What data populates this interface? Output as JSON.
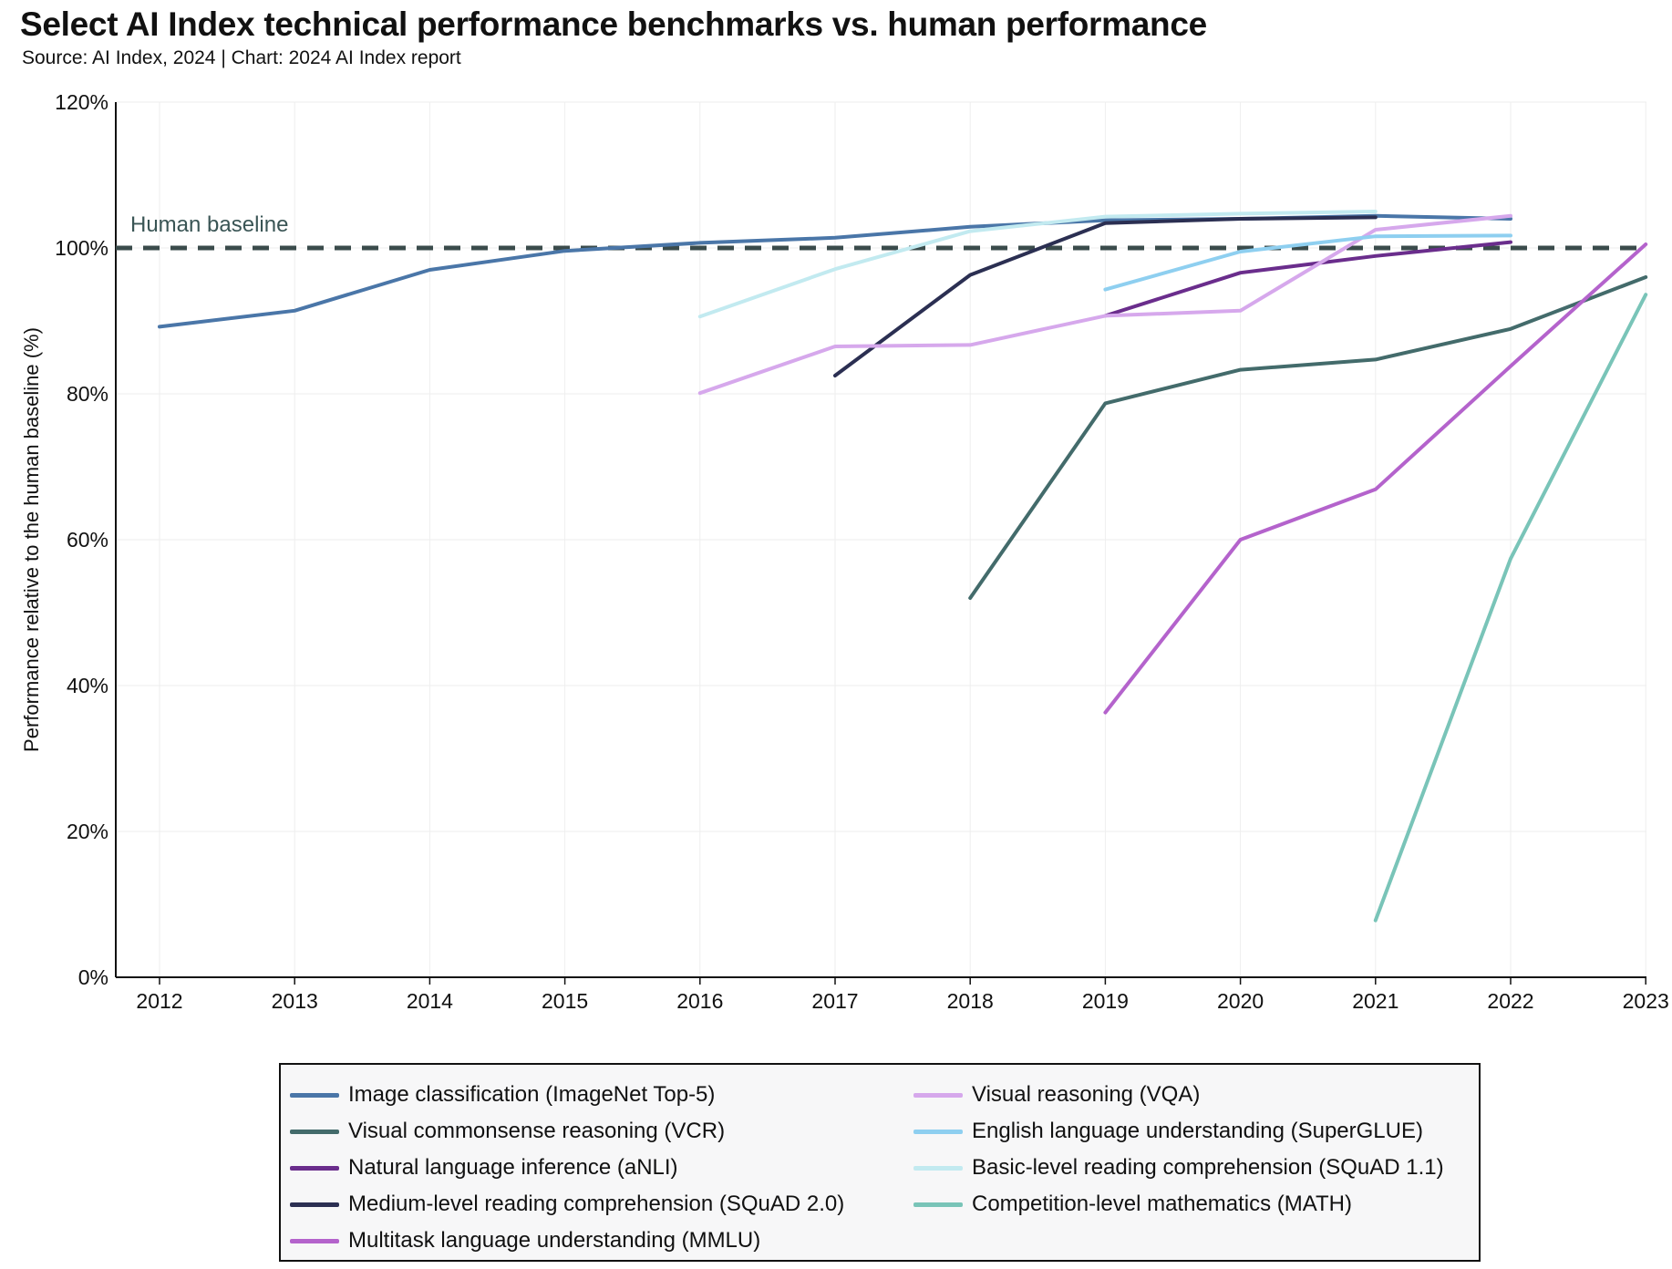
{
  "title": "Select AI Index technical performance benchmarks vs. human performance",
  "subtitle": "Source: AI Index, 2024 | Chart: 2024 AI Index report",
  "chart_data": {
    "type": "line",
    "ylabel": "Performance relative to the human baseline (%)",
    "xlabel": "",
    "x": [
      2012,
      2013,
      2014,
      2015,
      2016,
      2017,
      2018,
      2019,
      2020,
      2021,
      2022,
      2023
    ],
    "x_tick_labels": [
      "2012",
      "2013",
      "2014",
      "2015",
      "2016",
      "2017",
      "2018",
      "2019",
      "2020",
      "2021",
      "2022",
      "2023"
    ],
    "ylim": [
      0,
      120
    ],
    "y_ticks": [
      0,
      20,
      40,
      60,
      80,
      100,
      120
    ],
    "y_tick_labels": [
      "0%",
      "20%",
      "40%",
      "60%",
      "80%",
      "100%",
      "120%"
    ],
    "grid": "vertical and horizontal light gridlines",
    "legend_position": "bottom",
    "annotation": {
      "text": "Human baseline",
      "y": 100,
      "style": "dashed"
    },
    "series": [
      {
        "name": "Image classification (ImageNet Top-5)",
        "color": "#4a76a8",
        "points": [
          [
            2012,
            89.2
          ],
          [
            2013,
            91.4
          ],
          [
            2014,
            97.0
          ],
          [
            2015,
            99.6
          ],
          [
            2016,
            100.7
          ],
          [
            2017,
            101.4
          ],
          [
            2018,
            102.9
          ],
          [
            2019,
            103.8
          ],
          [
            2020,
            104.0
          ],
          [
            2021,
            104.4
          ],
          [
            2022,
            104.0
          ]
        ]
      },
      {
        "name": "Visual commonsense reasoning (VCR)",
        "color": "#436b6b",
        "points": [
          [
            2018,
            52.0
          ],
          [
            2019,
            78.7
          ],
          [
            2020,
            83.3
          ],
          [
            2021,
            84.7
          ],
          [
            2022,
            88.9
          ],
          [
            2023,
            96.0
          ]
        ]
      },
      {
        "name": "Natural language inference (aNLI)",
        "color": "#6a2d8c",
        "points": [
          [
            2019,
            90.7
          ],
          [
            2020,
            96.6
          ],
          [
            2021,
            98.9
          ],
          [
            2022,
            100.8
          ]
        ]
      },
      {
        "name": "Medium-level reading comprehension (SQuAD 2.0)",
        "color": "#2b2f52",
        "points": [
          [
            2017,
            82.5
          ],
          [
            2018,
            96.3
          ],
          [
            2019,
            103.4
          ],
          [
            2020,
            104.0
          ],
          [
            2021,
            104.2
          ]
        ]
      },
      {
        "name": "Multitask language understanding (MMLU)",
        "color": "#b463cc",
        "points": [
          [
            2019,
            36.3
          ],
          [
            2020,
            60.0
          ],
          [
            2021,
            66.9
          ],
          [
            2022,
            83.8
          ],
          [
            2023,
            100.5
          ]
        ]
      },
      {
        "name": "Visual reasoning (VQA)",
        "color": "#d6a8ec",
        "points": [
          [
            2016,
            80.1
          ],
          [
            2017,
            86.5
          ],
          [
            2018,
            86.7
          ],
          [
            2019,
            90.7
          ],
          [
            2020,
            91.4
          ],
          [
            2021,
            102.5
          ],
          [
            2022,
            104.4
          ]
        ]
      },
      {
        "name": "English language understanding (SuperGLUE)",
        "color": "#8ecff0",
        "points": [
          [
            2019,
            94.3
          ],
          [
            2020,
            99.5
          ],
          [
            2021,
            101.6
          ],
          [
            2022,
            101.7
          ]
        ]
      },
      {
        "name": "Basic-level reading comprehension (SQuAD 1.1)",
        "color": "#c2eaf0",
        "points": [
          [
            2016,
            90.6
          ],
          [
            2017,
            97.1
          ],
          [
            2018,
            102.3
          ],
          [
            2019,
            104.3
          ],
          [
            2020,
            104.7
          ],
          [
            2021,
            105.0
          ]
        ]
      },
      {
        "name": "Competition-level mathematics (MATH)",
        "color": "#79c4b8",
        "points": [
          [
            2021,
            7.8
          ],
          [
            2022,
            57.4
          ],
          [
            2023,
            93.6
          ]
        ]
      }
    ]
  }
}
